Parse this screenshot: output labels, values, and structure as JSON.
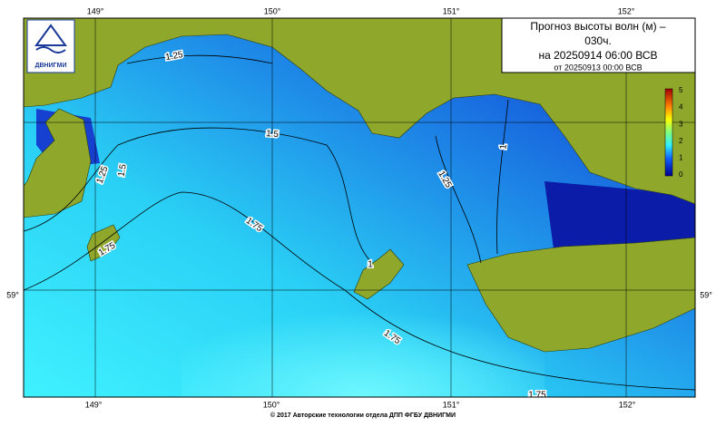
{
  "title": {
    "lines": [
      "Прогноз высоты волн (м) –",
      "030ч.",
      "на 20250914 06:00 ВСВ"
    ],
    "issued": "от 20250913 00:00 ВСВ"
  },
  "axes": {
    "lon_top": [
      "149°",
      "150°",
      "151°",
      "152°"
    ],
    "lon_bottom": [
      "149°",
      "150°",
      "151°",
      "152°"
    ],
    "lat_left": "59°",
    "lat_right": "59°"
  },
  "colorbar": {
    "ticks": [
      "0",
      "1",
      "2",
      "3",
      "4",
      "5"
    ]
  },
  "contour_labels": [
    "1.25",
    "1.5",
    "1.25",
    "1.5",
    "1.75",
    "1.75",
    "1",
    "1.25",
    "1",
    "1.75",
    "1.75"
  ],
  "logo": "ДВНИГМИ",
  "footer": "© 2017 Авторские технологии отдела ДПП ФГБУ ДВНИГМИ"
}
